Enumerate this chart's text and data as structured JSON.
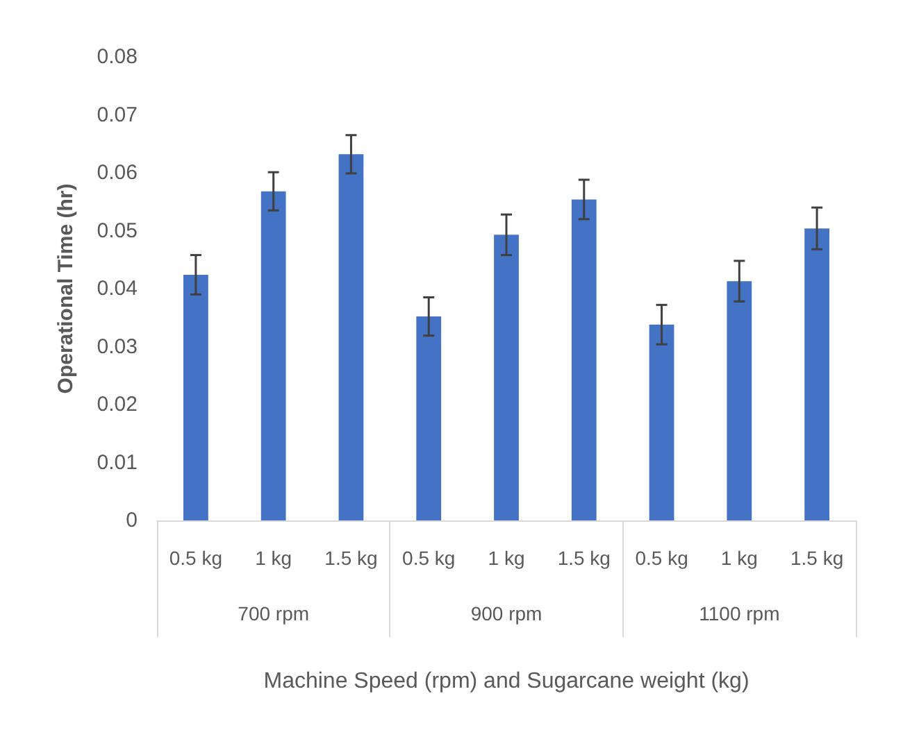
{
  "chart_data": {
    "type": "bar",
    "xlabel": "Machine Speed (rpm) and Sugarcane weight (kg)",
    "ylabel": "Operational Time (hr)",
    "categories": [
      "0.5 kg",
      "1 kg",
      "1.5 kg",
      "0.5 kg",
      "1 kg",
      "1.5 kg",
      "0.5 kg",
      "1 kg",
      "1.5 kg"
    ],
    "annotations": [
      "700 rpm",
      "900 rpm",
      "1100 rpm"
    ],
    "values": [
      0.0424,
      0.0568,
      0.0632,
      0.0352,
      0.0493,
      0.0554,
      0.0338,
      0.0413,
      0.0504
    ],
    "errors": [
      0.0034,
      0.0033,
      0.0033,
      0.0033,
      0.0035,
      0.0034,
      0.0034,
      0.0035,
      0.0036
    ],
    "color": "#4472c4",
    "ylim": [
      0,
      0.08
    ],
    "yticks": [
      0,
      0.01,
      0.02,
      0.03,
      0.04,
      0.05,
      0.06,
      0.07,
      0.08
    ],
    "grid": false
  }
}
